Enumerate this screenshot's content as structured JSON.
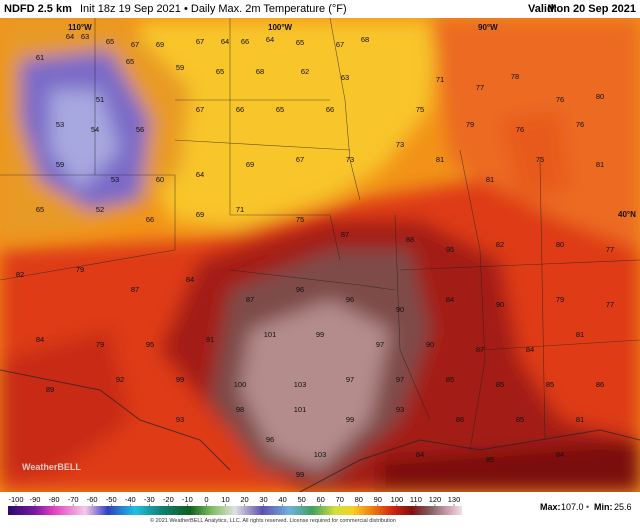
{
  "header": {
    "title": "NDFD 2.5 km",
    "subtitle": "Init 18z 19 Sep 2021 • Daily Max. 2m Temperature (°F)",
    "valid_label": "Valid:",
    "valid_date": "Mon 20 Sep 2021"
  },
  "map": {
    "longitude_labels": [
      "110°W",
      "100°W",
      "90°W"
    ],
    "latitude_labels": [
      "40°N"
    ],
    "logo": "WeatherBELL",
    "temperatures": [
      64,
      63,
      65,
      67,
      69,
      67,
      64,
      66,
      64,
      65,
      67,
      68,
      61,
      65,
      59,
      65,
      68,
      62,
      63,
      71,
      77,
      78,
      76,
      80,
      51,
      53,
      54,
      56,
      67,
      66,
      65,
      66,
      75,
      79,
      76,
      76,
      59,
      53,
      60,
      64,
      69,
      67,
      73,
      73,
      81,
      81,
      75,
      81,
      65,
      52,
      66,
      69,
      71,
      75,
      87,
      88,
      95,
      82,
      80,
      77,
      82,
      79,
      87,
      84,
      87,
      96,
      96,
      90,
      84,
      90,
      79,
      77,
      84,
      79,
      95,
      91,
      101,
      99,
      97,
      90,
      87,
      84,
      81,
      89,
      92,
      99,
      100,
      103,
      97,
      97,
      85,
      85,
      85,
      86,
      93,
      98,
      101,
      99,
      93,
      86,
      85,
      81,
      96,
      103,
      84,
      85,
      84,
      99
    ]
  },
  "colorbar": {
    "ticks": [
      -100,
      -90,
      -80,
      -70,
      -60,
      -50,
      -40,
      -30,
      -20,
      -10,
      0,
      10,
      20,
      30,
      40,
      50,
      60,
      70,
      80,
      90,
      100,
      110,
      120,
      130
    ],
    "copyright": "© 2021 WeatherBELL Analytics, LLC. All rights reserved. License required for commercial distribution"
  },
  "stats": {
    "max_label": "Max:",
    "max": "107.0",
    "min_label": "Min:",
    "min": "25.6"
  }
}
